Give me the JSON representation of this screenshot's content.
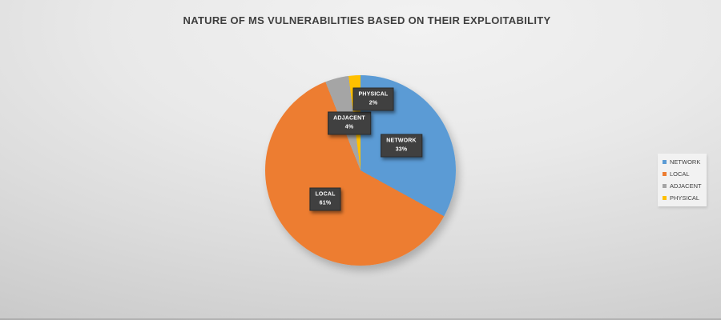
{
  "title": "NATURE OF MS VULNERABILITIES BASED ON THEIR EXPLOITABILITY",
  "chart_data": {
    "type": "pie",
    "title": "NATURE OF MS VULNERABILITIES BASED ON THEIR EXPLOITABILITY",
    "categories": [
      "NETWORK",
      "LOCAL",
      "ADJACENT",
      "PHYSICAL"
    ],
    "values": [
      33,
      61,
      4,
      2
    ],
    "value_labels": [
      "33%",
      "61%",
      "4%",
      "2%"
    ],
    "colors": [
      "#5B9BD5",
      "#ED7D31",
      "#A5A5A5",
      "#FFC000"
    ],
    "start_angle_deg": 0,
    "direction": "clockwise",
    "legend_position": "right",
    "data_labels": "category name and percentage in dark callout boxes"
  },
  "legend": {
    "items": [
      "NETWORK",
      "LOCAL",
      "ADJACENT",
      "PHYSICAL"
    ]
  },
  "style": {
    "label_box_bg": "#404040",
    "label_text_color": "#ffffff",
    "title_color": "#3f3f3f",
    "background": "gray gradient slide"
  }
}
